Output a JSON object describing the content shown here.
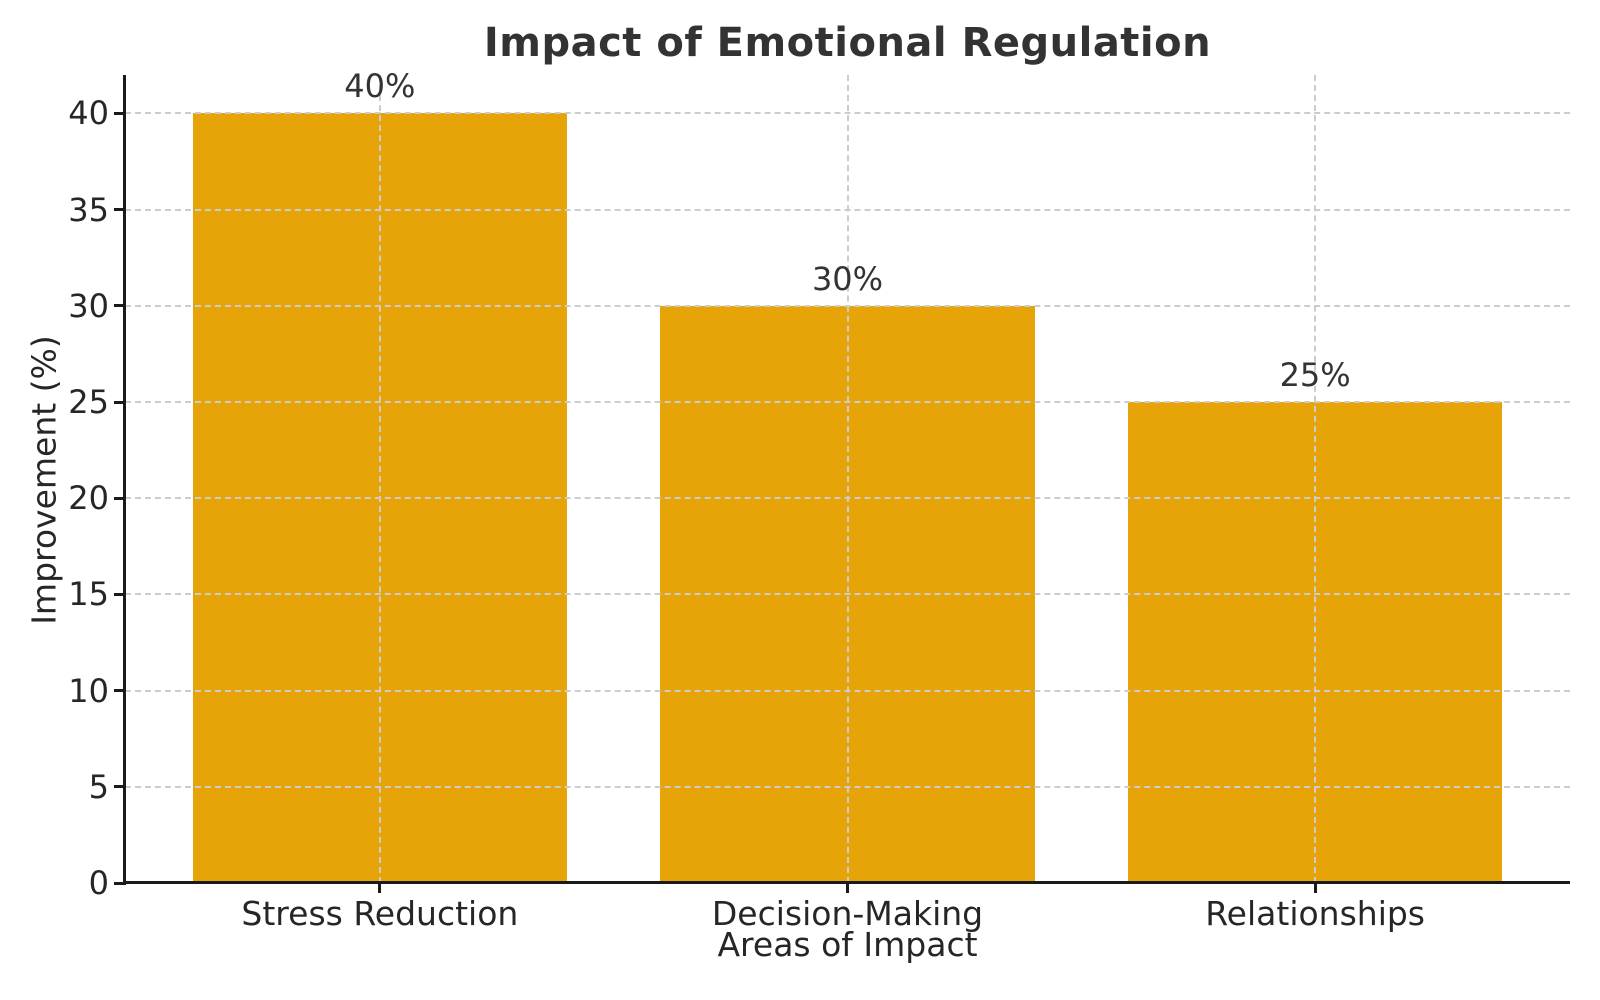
{
  "chart_data": {
    "type": "bar",
    "title": "Impact of Emotional Regulation",
    "xlabel": "Areas of Impact",
    "ylabel": "Improvement (%)",
    "categories": [
      "Stress Reduction",
      "Decision-Making",
      "Relationships"
    ],
    "values": [
      40,
      30,
      25
    ],
    "value_labels": [
      "40%",
      "30%",
      "25%"
    ],
    "yticks": [
      0,
      5,
      10,
      15,
      20,
      25,
      30,
      35,
      40
    ],
    "ylim": [
      0,
      42
    ],
    "bar_color": "#E6A408",
    "grid": true,
    "grid_color": "#cccccc",
    "grid_style": "dashed",
    "gridlines_above_bars": true,
    "axis_color": "#1a1a1a",
    "text_color": "#262626",
    "title_color": "#333333",
    "legend_position": "none",
    "background_color": "#ffffff"
  }
}
